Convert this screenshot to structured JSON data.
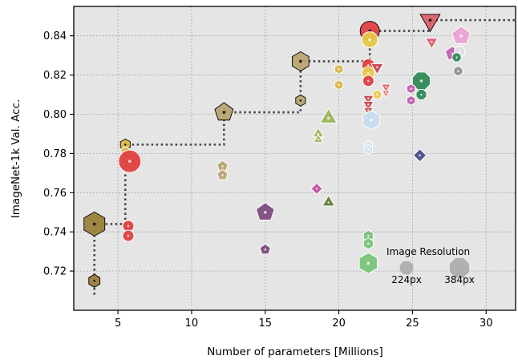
{
  "chart_data": {
    "type": "scatter",
    "title": "",
    "xlabel": "Number of parameters [Millions]",
    "ylabel": "ImageNet-1k Val. Acc.",
    "xlim": [
      2,
      32
    ],
    "ylim": [
      0.7,
      0.855
    ],
    "xticks": [
      {
        "value": 5,
        "label": "5"
      },
      {
        "value": 10,
        "label": "10"
      },
      {
        "value": 15,
        "label": "15"
      },
      {
        "value": 20,
        "label": "20"
      },
      {
        "value": 25,
        "label": "25"
      },
      {
        "value": 30,
        "label": "30"
      }
    ],
    "yticks": [
      {
        "value": 0.72,
        "label": "0.72"
      },
      {
        "value": 0.74,
        "label": "0.74"
      },
      {
        "value": 0.76,
        "label": "0.76"
      },
      {
        "value": 0.78,
        "label": "0.78"
      },
      {
        "value": 0.8,
        "label": "0.80"
      },
      {
        "value": 0.82,
        "label": "0.82"
      },
      {
        "value": 0.84,
        "label": "0.84"
      }
    ],
    "grid": true,
    "background_color": "#e5e5e5",
    "pareto_front": {
      "style": "dotted",
      "color": "#444444",
      "points": [
        [
          3.4,
          0.708
        ],
        [
          3.4,
          0.744
        ],
        [
          5.5,
          0.744
        ],
        [
          5.5,
          0.7845
        ],
        [
          12.2,
          0.7845
        ],
        [
          12.2,
          0.801
        ],
        [
          17.4,
          0.801
        ],
        [
          17.4,
          0.827
        ],
        [
          22.1,
          0.827
        ],
        [
          22.1,
          0.8425
        ],
        [
          26.2,
          0.8425
        ],
        [
          26.2,
          0.848
        ],
        [
          32,
          0.848
        ]
      ]
    },
    "points": [
      {
        "x": 3.4,
        "y": 0.744,
        "shape": "hexagon",
        "color": "#9c7f3c",
        "size": 15,
        "pareto": true
      },
      {
        "x": 3.4,
        "y": 0.715,
        "shape": "hexagon",
        "color": "#9c7f3c",
        "size": 8,
        "pareto": true
      },
      {
        "x": 5.5,
        "y": 0.7845,
        "shape": "hexagon",
        "color": "#ddb64a",
        "size": 7,
        "pareto": true
      },
      {
        "x": 5.5,
        "y": 0.781,
        "shape": "hexagon",
        "color": "#ddb64a",
        "size": 6,
        "pareto": false
      },
      {
        "x": 5.8,
        "y": 0.776,
        "shape": "circle",
        "color": "#e04040",
        "size": 14,
        "pareto": false
      },
      {
        "x": 5.7,
        "y": 0.743,
        "shape": "circle",
        "color": "#e04040",
        "size": 7,
        "pareto": false
      },
      {
        "x": 5.7,
        "y": 0.738,
        "shape": "circle",
        "color": "#e04040",
        "size": 7,
        "pareto": false
      },
      {
        "x": 12.2,
        "y": 0.801,
        "shape": "pentagon",
        "color": "#b8a470",
        "size": 12,
        "pareto": true
      },
      {
        "x": 12.1,
        "y": 0.7735,
        "shape": "pentagon",
        "color": "#b8a470",
        "size": 7,
        "pareto": false
      },
      {
        "x": 12.1,
        "y": 0.769,
        "shape": "pentagon",
        "color": "#b8a470",
        "size": 7,
        "pareto": false
      },
      {
        "x": 15.0,
        "y": 0.75,
        "shape": "pentagon",
        "color": "#7d4d82",
        "size": 12,
        "pareto": false
      },
      {
        "x": 15.0,
        "y": 0.731,
        "shape": "pentagon",
        "color": "#7d4d82",
        "size": 7,
        "pareto": false
      },
      {
        "x": 17.4,
        "y": 0.827,
        "shape": "hexagon",
        "color": "#b8a470",
        "size": 12,
        "pareto": true
      },
      {
        "x": 17.4,
        "y": 0.807,
        "shape": "hexagon",
        "color": "#b8a470",
        "size": 7,
        "pareto": true
      },
      {
        "x": 18.6,
        "y": 0.79,
        "shape": "triangle-up",
        "color": "#9bb55a",
        "size": 7,
        "pareto": false
      },
      {
        "x": 18.6,
        "y": 0.787,
        "shape": "triangle-up",
        "color": "#9bb55a",
        "size": 6,
        "pareto": false
      },
      {
        "x": 19.3,
        "y": 0.798,
        "shape": "triangle-up",
        "color": "#9bb55a",
        "size": 11,
        "pareto": false
      },
      {
        "x": 18.5,
        "y": 0.762,
        "shape": "diamond",
        "color": "#c24fa0",
        "size": 7,
        "pareto": false
      },
      {
        "x": 19.3,
        "y": 0.755,
        "shape": "triangle-up",
        "color": "#5e7a33",
        "size": 8,
        "pareto": false
      },
      {
        "x": 20.0,
        "y": 0.823,
        "shape": "hexagon",
        "color": "#ddb64a",
        "size": 6,
        "pareto": false
      },
      {
        "x": 20.0,
        "y": 0.815,
        "shape": "hexagon",
        "color": "#ddb64a",
        "size": 6,
        "pareto": false
      },
      {
        "x": 22.1,
        "y": 0.8425,
        "shape": "circle",
        "color": "#e04040",
        "size": 12,
        "pareto": true
      },
      {
        "x": 22.1,
        "y": 0.838,
        "shape": "circle",
        "color": "#e8c94a",
        "size": 10,
        "pareto": false
      },
      {
        "x": 22.0,
        "y": 0.825,
        "shape": "circle",
        "color": "#e04040",
        "size": 8,
        "pareto": false
      },
      {
        "x": 22.0,
        "y": 0.821,
        "shape": "circle",
        "color": "#e8c94a",
        "size": 8,
        "pareto": false
      },
      {
        "x": 22.6,
        "y": 0.824,
        "shape": "triangle-down",
        "color": "#c8464e",
        "size": 8,
        "pareto": false
      },
      {
        "x": 22.0,
        "y": 0.817,
        "shape": "circle",
        "color": "#e04040",
        "size": 7,
        "pareto": false
      },
      {
        "x": 22.6,
        "y": 0.81,
        "shape": "hexagon",
        "color": "#e8c94a",
        "size": 6,
        "pareto": false
      },
      {
        "x": 22.0,
        "y": 0.808,
        "shape": "triangle-down",
        "color": "#c8464e",
        "size": 7,
        "pareto": false
      },
      {
        "x": 22.0,
        "y": 0.805,
        "shape": "triangle-down",
        "color": "#c8464e",
        "size": 7,
        "pareto": false
      },
      {
        "x": 22.0,
        "y": 0.802,
        "shape": "triangle-down",
        "color": "#c8464e",
        "size": 6,
        "pareto": false
      },
      {
        "x": 23.2,
        "y": 0.814,
        "shape": "triangle-down",
        "color": "#e06060",
        "size": 6,
        "pareto": false
      },
      {
        "x": 23.2,
        "y": 0.811,
        "shape": "triangle-down",
        "color": "#e06060",
        "size": 5,
        "pareto": false
      },
      {
        "x": 22.2,
        "y": 0.797,
        "shape": "hexagon",
        "color": "#c8dcf0",
        "size": 12,
        "pareto": false
      },
      {
        "x": 22.0,
        "y": 0.784,
        "shape": "hexagon",
        "color": "#d8e4f2",
        "size": 6,
        "pareto": false
      },
      {
        "x": 22.0,
        "y": 0.782,
        "shape": "hexagon",
        "color": "#d8e4f2",
        "size": 6,
        "pareto": false
      },
      {
        "x": 22.0,
        "y": 0.738,
        "shape": "hexagon",
        "color": "#7ac47a",
        "size": 7,
        "pareto": false
      },
      {
        "x": 22.0,
        "y": 0.734,
        "shape": "hexagon",
        "color": "#7ac47a",
        "size": 7,
        "pareto": false
      },
      {
        "x": 22.0,
        "y": 0.724,
        "shape": "hexagon",
        "color": "#7ac47a",
        "size": 13,
        "pareto": false
      },
      {
        "x": 25.6,
        "y": 0.817,
        "shape": "octagon",
        "color": "#2e8b57",
        "size": 12,
        "pareto": false
      },
      {
        "x": 25.6,
        "y": 0.81,
        "shape": "octagon",
        "color": "#2e8b57",
        "size": 7,
        "pareto": false
      },
      {
        "x": 24.9,
        "y": 0.813,
        "shape": "hexagon",
        "color": "#c060b0",
        "size": 6,
        "pareto": false
      },
      {
        "x": 24.9,
        "y": 0.807,
        "shape": "hexagon",
        "color": "#c060b0",
        "size": 6,
        "pareto": false
      },
      {
        "x": 25.5,
        "y": 0.779,
        "shape": "diamond",
        "color": "#4a4f8c",
        "size": 8,
        "pareto": false
      },
      {
        "x": 26.2,
        "y": 0.848,
        "shape": "triangle-down",
        "color": "#d9606a",
        "size": 13,
        "pareto": true
      },
      {
        "x": 26.3,
        "y": 0.837,
        "shape": "triangle-down",
        "color": "#d9606a",
        "size": 8,
        "pareto": false
      },
      {
        "x": 28.3,
        "y": 0.84,
        "shape": "pentagon",
        "color": "#e8a3d4",
        "size": 12,
        "pareto": false
      },
      {
        "x": 27.7,
        "y": 0.831,
        "shape": "pentagon",
        "color": "#c060b0",
        "size": 9,
        "pareto": false
      },
      {
        "x": 28.2,
        "y": 0.832,
        "shape": "octagon",
        "color": "#e0e0e0",
        "size": 7,
        "pareto": false
      },
      {
        "x": 28.0,
        "y": 0.829,
        "shape": "octagon",
        "color": "#2e8b57",
        "size": 6,
        "pareto": false
      },
      {
        "x": 28.1,
        "y": 0.822,
        "shape": "octagon",
        "color": "#909090",
        "size": 6,
        "pareto": false
      }
    ],
    "legend": {
      "placement": "lower-right",
      "title": "Image Resolution",
      "entries": [
        {
          "label": "224px",
          "size": 9,
          "color": "#b0b0b0"
        },
        {
          "label": "384px",
          "size": 13,
          "color": "#b0b0b0"
        }
      ]
    }
  }
}
